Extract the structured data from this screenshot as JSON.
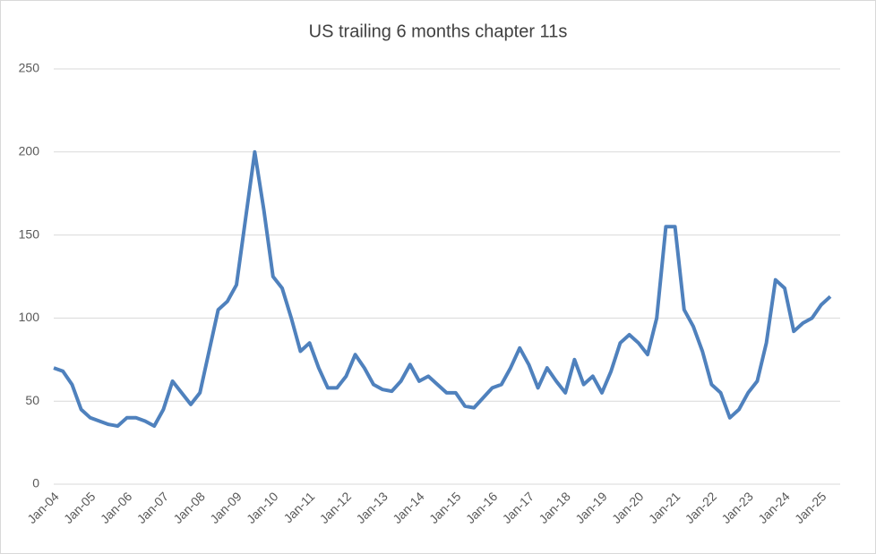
{
  "chart_data": {
    "type": "line",
    "title": "US trailing 6 months chapter 11s",
    "categories": [
      "Jan-04",
      null,
      null,
      null,
      "Jan-05",
      null,
      null,
      null,
      "Jan-06",
      null,
      null,
      null,
      "Jan-07",
      null,
      null,
      null,
      "Jan-08",
      null,
      null,
      null,
      "Jan-09",
      null,
      null,
      null,
      "Jan-10",
      null,
      null,
      null,
      "Jan-11",
      null,
      null,
      null,
      "Jan-12",
      null,
      null,
      null,
      "Jan-13",
      null,
      null,
      null,
      "Jan-14",
      null,
      null,
      null,
      "Jan-15",
      null,
      null,
      null,
      "Jan-16",
      null,
      null,
      null,
      "Jan-17",
      null,
      null,
      null,
      "Jan-18",
      null,
      null,
      null,
      "Jan-19",
      null,
      null,
      null,
      "Jan-20",
      null,
      null,
      null,
      "Jan-21",
      null,
      null,
      null,
      "Jan-22",
      null,
      null,
      null,
      "Jan-23",
      null,
      null,
      null,
      "Jan-24",
      null,
      null,
      null,
      "Jan-25",
      null
    ],
    "series": [
      {
        "color": "#4f81bd",
        "values": [
          70,
          68,
          60,
          45,
          40,
          38,
          36,
          35,
          40,
          40,
          38,
          35,
          45,
          62,
          55,
          48,
          55,
          80,
          105,
          110,
          120,
          160,
          200,
          165,
          125,
          118,
          100,
          80,
          85,
          70,
          58,
          58,
          65,
          78,
          70,
          60,
          57,
          56,
          62,
          72,
          62,
          65,
          60,
          55,
          55,
          47,
          46,
          52,
          58,
          60,
          70,
          82,
          72,
          58,
          70,
          62,
          55,
          75,
          60,
          65,
          55,
          68,
          85,
          90,
          85,
          78,
          100,
          155,
          155,
          105,
          95,
          80,
          60,
          55,
          40,
          45,
          55,
          62,
          85,
          123,
          118,
          92,
          97,
          100,
          108,
          113
        ]
      }
    ],
    "ylim": [
      0,
      250
    ],
    "yticks": [
      0,
      50,
      100,
      150,
      200,
      250
    ],
    "grid": true
  }
}
